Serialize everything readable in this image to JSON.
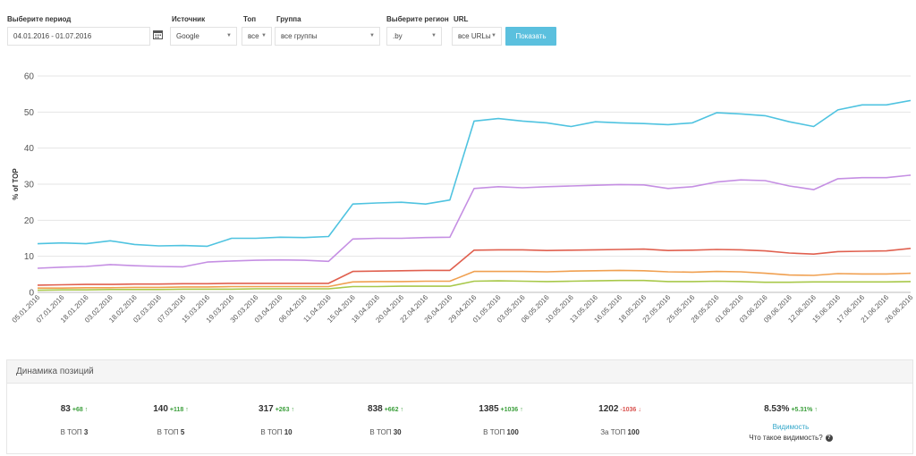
{
  "filters": {
    "period": {
      "label": "Выберите период",
      "value": "04.01.2016 - 01.07.2016"
    },
    "source": {
      "label": "Источник",
      "value": "Google"
    },
    "top": {
      "label": "Топ",
      "value": "все"
    },
    "group": {
      "label": "Группа",
      "value": "все группы"
    },
    "region": {
      "label": "Выберите регион",
      "value": ".by"
    },
    "url": {
      "label": "URL",
      "value": "все URLы"
    },
    "show_button": "Показать",
    "icons": {
      "calendar": "calendar-icon",
      "dropdown": "caret-down-icon"
    }
  },
  "chart_data": {
    "type": "line",
    "ylabel": "% of TOP",
    "xlabel": "",
    "ylim": [
      0,
      60
    ],
    "yticks": [
      0,
      10,
      20,
      30,
      40,
      50,
      60
    ],
    "grid": true,
    "x": [
      "05.01.2016",
      "07.01.2016",
      "18.01.2016",
      "03.02.2016",
      "18.02.2016",
      "02.03.2016",
      "07.03.2016",
      "15.03.2016",
      "19.03.2016",
      "30.03.2016",
      "03.04.2016",
      "06.04.2016",
      "11.04.2016",
      "15.04.2016",
      "18.04.2016",
      "20.04.2016",
      "22.04.2016",
      "26.04.2016",
      "29.04.2016",
      "01.05.2016",
      "03.05.2016",
      "06.05.2016",
      "10.05.2016",
      "13.05.2016",
      "16.05.2016",
      "18.05.2016",
      "22.05.2016",
      "25.05.2016",
      "28.05.2016",
      "01.06.2016",
      "03.06.2016",
      "09.06.2016",
      "12.06.2016",
      "15.06.2016",
      "17.06.2016",
      "21.06.2016",
      "26.06.2016"
    ],
    "series": [
      {
        "color": "#4fc3e0",
        "values": [
          13.5,
          13.7,
          13.5,
          14.3,
          13.3,
          12.9,
          13.0,
          12.8,
          15.0,
          15.0,
          15.3,
          15.2,
          15.5,
          24.5,
          24.8,
          25.0,
          24.5,
          25.6,
          47.5,
          48.2,
          47.5,
          47.0,
          46.0,
          47.3,
          47.0,
          46.8,
          46.5,
          47.0,
          49.8,
          49.5,
          49.0,
          47.3,
          46.0,
          50.6,
          52.0,
          52.0,
          53.2
        ]
      },
      {
        "color": "#c58fe3",
        "values": [
          6.7,
          7.0,
          7.2,
          7.7,
          7.4,
          7.2,
          7.1,
          8.4,
          8.7,
          8.9,
          9.0,
          8.9,
          8.6,
          14.8,
          15.0,
          15.0,
          15.2,
          15.3,
          28.8,
          29.3,
          29.0,
          29.3,
          29.5,
          29.7,
          29.9,
          29.8,
          28.8,
          29.3,
          30.6,
          31.2,
          31.0,
          29.5,
          28.5,
          31.5,
          31.8,
          31.8,
          32.5
        ]
      },
      {
        "color": "#e0604f",
        "values": [
          2.0,
          2.1,
          2.2,
          2.2,
          2.3,
          2.3,
          2.4,
          2.4,
          2.5,
          2.5,
          2.5,
          2.5,
          2.5,
          5.8,
          5.9,
          6.0,
          6.1,
          6.1,
          11.7,
          11.8,
          11.8,
          11.6,
          11.7,
          11.8,
          11.9,
          12.0,
          11.6,
          11.7,
          11.9,
          11.8,
          11.5,
          10.9,
          10.6,
          11.3,
          11.4,
          11.5,
          12.2
        ]
      },
      {
        "color": "#f0a050",
        "values": [
          1.2,
          1.2,
          1.3,
          1.3,
          1.4,
          1.4,
          1.5,
          1.5,
          1.6,
          1.6,
          1.6,
          1.6,
          1.6,
          2.9,
          3.0,
          3.0,
          3.1,
          3.1,
          5.8,
          5.8,
          5.8,
          5.7,
          5.9,
          6.0,
          6.1,
          6.0,
          5.7,
          5.6,
          5.8,
          5.7,
          5.3,
          4.8,
          4.7,
          5.2,
          5.1,
          5.1,
          5.3
        ]
      },
      {
        "color": "#a8c84a",
        "values": [
          0.6,
          0.7,
          0.7,
          0.8,
          0.8,
          0.8,
          0.9,
          0.9,
          0.9,
          1.0,
          1.0,
          1.0,
          1.0,
          1.6,
          1.6,
          1.7,
          1.7,
          1.7,
          3.1,
          3.2,
          3.1,
          3.0,
          3.1,
          3.2,
          3.3,
          3.3,
          3.0,
          3.0,
          3.1,
          3.0,
          2.8,
          2.8,
          2.9,
          2.9,
          2.9,
          2.9,
          3.0
        ]
      }
    ]
  },
  "panel": {
    "title": "Динамика позиций",
    "stats": [
      {
        "value": "83",
        "delta": "+68",
        "dir": "up",
        "label_prefix": "В ТОП",
        "label_strong": "3"
      },
      {
        "value": "140",
        "delta": "+118",
        "dir": "up",
        "label_prefix": "В ТОП",
        "label_strong": "5"
      },
      {
        "value": "317",
        "delta": "+263",
        "dir": "up",
        "label_prefix": "В ТОП",
        "label_strong": "10"
      },
      {
        "value": "838",
        "delta": "+662",
        "dir": "up",
        "label_prefix": "В ТОП",
        "label_strong": "30"
      },
      {
        "value": "1385",
        "delta": "+1036",
        "dir": "up",
        "label_prefix": "В ТОП",
        "label_strong": "100"
      },
      {
        "value": "1202",
        "delta": "-1036",
        "dir": "down",
        "label_prefix": "За ТОП",
        "label_strong": "100"
      },
      {
        "value": "8.53%",
        "delta": "+5.31%",
        "dir": "up"
      }
    ],
    "visibility_link": "Видимость",
    "visibility_question": "Что такое видимость?",
    "icons": {
      "arrow_up": "arrow-up-icon",
      "arrow_down": "arrow-down-icon",
      "help": "question-circle-icon"
    }
  }
}
